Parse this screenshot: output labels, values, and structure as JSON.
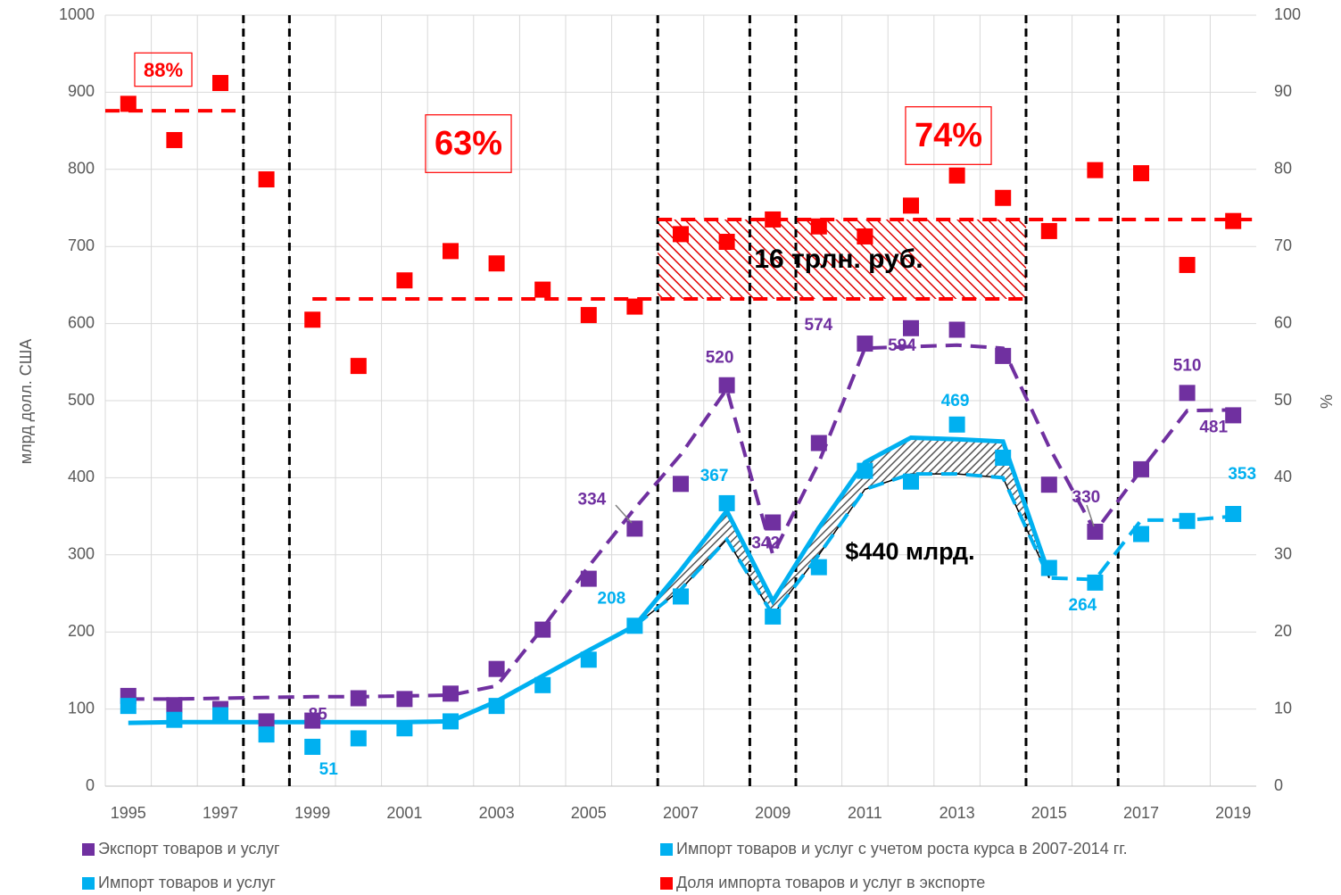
{
  "chart_data": {
    "type": "combo",
    "y_label": "млрд долл. США",
    "y2_label": "%",
    "x": [
      1995,
      1996,
      1997,
      1998,
      1999,
      2000,
      2001,
      2002,
      2003,
      2004,
      2005,
      2006,
      2007,
      2008,
      2009,
      2010,
      2011,
      2012,
      2013,
      2014,
      2015,
      2016,
      2017,
      2018,
      2019
    ],
    "xlim": [
      1994.5,
      2019.5
    ],
    "xticks": [
      1995,
      1997,
      1999,
      2001,
      2003,
      2005,
      2007,
      2009,
      2011,
      2013,
      2015,
      2017,
      2019
    ],
    "ylim": [
      0,
      1000
    ],
    "yticks": [
      0,
      100,
      200,
      300,
      400,
      500,
      600,
      700,
      800,
      900,
      1000
    ],
    "y2lim": [
      0,
      100
    ],
    "y2ticks": [
      0,
      10,
      20,
      30,
      40,
      50,
      60,
      70,
      80,
      90,
      100
    ],
    "grid": true,
    "legend": "bottom",
    "series": [
      {
        "name": "Экспорт товаров и услуг",
        "color": "#7030a0",
        "marker": "square",
        "values": [
          117,
          105,
          100,
          84,
          85,
          114,
          113,
          120,
          152,
          203,
          269,
          334,
          392,
          520,
          342,
          445,
          574,
          594,
          592,
          558,
          391,
          330,
          411,
          510,
          481
        ],
        "value_labels": [
          null,
          null,
          null,
          null,
          "85",
          null,
          null,
          null,
          null,
          null,
          null,
          "334",
          null,
          "520",
          "342",
          null,
          "574",
          "594",
          null,
          null,
          null,
          "330",
          null,
          "510",
          "481"
        ],
        "trend": [
          113,
          113,
          114,
          115,
          116,
          116,
          117,
          118,
          130,
          205,
          285,
          360,
          430,
          515,
          300,
          420,
          568,
          570,
          572,
          568,
          440,
          330,
          410,
          487,
          488
        ]
      },
      {
        "name": "Импорт товаров и услуг с учетом роста курса в 2007-2014 гг.",
        "color": "#00b0f0",
        "marker": "line",
        "values": [
          82,
          83,
          83,
          83,
          83,
          83,
          83,
          84,
          110,
          143,
          176,
          208,
          280,
          357,
          240,
          335,
          420,
          452,
          450,
          447,
          275,
          null,
          null,
          null,
          null
        ]
      },
      {
        "name": "Импорт товаров и услуг",
        "color": "#00b0f0",
        "marker": "square",
        "values": [
          104,
          86,
          92,
          67,
          51,
          62,
          75,
          84,
          104,
          131,
          164,
          208,
          246,
          367,
          220,
          284,
          409,
          395,
          469,
          426,
          283,
          264,
          327,
          344,
          353
        ],
        "value_labels": [
          null,
          null,
          null,
          null,
          "51",
          null,
          null,
          null,
          null,
          null,
          null,
          "208",
          null,
          "367",
          null,
          null,
          null,
          null,
          "469",
          null,
          null,
          "264",
          null,
          null,
          "353"
        ],
        "trend": [
          null,
          null,
          null,
          null,
          null,
          null,
          null,
          null,
          null,
          null,
          null,
          208,
          255,
          320,
          222,
          300,
          385,
          405,
          405,
          400,
          270,
          268,
          345,
          345,
          350
        ]
      },
      {
        "name": "Доля импорта товаров и услуг в экспорте",
        "color": "#ff0000",
        "marker": "square",
        "axis": "y2",
        "values": [
          88.5,
          83.8,
          91.2,
          78.7,
          60.5,
          54.5,
          65.6,
          69.4,
          67.8,
          64.4,
          61.1,
          62.2,
          71.6,
          70.6,
          73.5,
          72.6,
          71.3,
          75.3,
          79.2,
          76.3,
          72.0,
          79.9,
          79.5,
          67.6,
          73.3
        ]
      }
    ],
    "reference_lines": [
      {
        "value": 87.6,
        "label": "88%",
        "from": 1994.5,
        "to": 1997.5
      },
      {
        "value": 63.2,
        "label": "63%",
        "from": 1999,
        "to": 2014.5
      },
      {
        "value": 73.5,
        "label": "74%",
        "from": 2006.5,
        "to": 2019.5
      }
    ],
    "period_boundaries": [
      1997.5,
      1998.5,
      2006.5,
      2008.5,
      2009.5,
      2014.5,
      2016.5
    ],
    "annotations": [
      "16 трлн. руб.",
      "$440 млрд."
    ]
  }
}
